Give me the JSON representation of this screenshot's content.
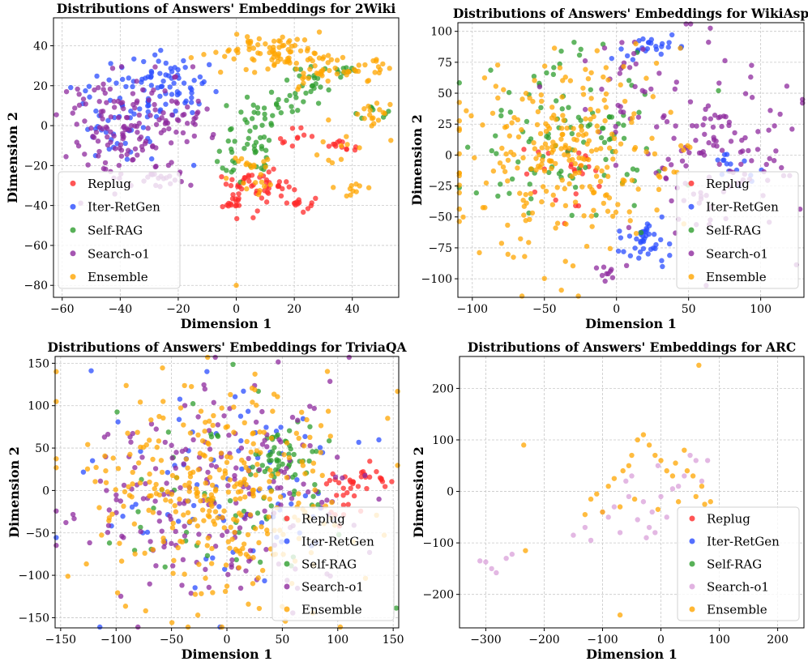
{
  "chart_data": [
    {
      "type": "scatter",
      "title": "Distributions of Answers' Embeddings for 2Wiki",
      "xlabel": "Dimension 1",
      "ylabel": "Dimension 2",
      "xlim": [
        -63,
        56
      ],
      "ylim": [
        -86,
        54
      ],
      "xticks": [
        -60,
        -40,
        -20,
        0,
        20,
        40
      ],
      "yticks": [
        -80,
        -60,
        -40,
        -20,
        0,
        20,
        40
      ],
      "grid": true,
      "legend_position": "lower-left",
      "colors": {
        "Replug": "#ff2a2a",
        "Iter-RetGen": "#2a4cff",
        "Self-RAG": "#2e9e2e",
        "Search-o1": "#8e2a9e",
        "Ensemble": "#ffa500"
      },
      "series": [
        {
          "name": "Replug",
          "clusters": [
            [
              5,
              -28,
              4,
              4,
              30
            ],
            [
              0,
              -38,
              4,
              3,
              20
            ],
            [
              15,
              -31,
              3,
              2,
              12
            ],
            [
              21,
              -39,
              3,
              2,
              14
            ],
            [
              36,
              -9,
              2,
              2,
              12
            ],
            [
              20,
              -6,
              3,
              3,
              10
            ]
          ]
        },
        {
          "name": "Iter-RetGen",
          "clusters": [
            [
              -35,
              10,
              11,
              13,
              80
            ],
            [
              -22,
              20,
              8,
              7,
              40
            ]
          ]
        },
        {
          "name": "Self-RAG",
          "clusters": [
            [
              3,
              -10,
              5,
              9,
              45
            ],
            [
              13,
              8,
              5,
              5,
              20
            ],
            [
              25,
              18,
              5,
              5,
              22
            ],
            [
              35,
              27,
              5,
              3,
              12
            ],
            [
              48,
              5,
              4,
              3,
              8
            ]
          ]
        },
        {
          "name": "Search-o1",
          "clusters": [
            [
              -38,
              0,
              11,
              14,
              150
            ],
            [
              -25,
              -26,
              6,
              3,
              18
            ],
            [
              -15,
              5,
              3,
              6,
              12
            ]
          ]
        },
        {
          "name": "Ensemble",
          "clusters": [
            [
              12,
              38,
              10,
              5,
              70
            ],
            [
              28,
              30,
              7,
              6,
              40
            ],
            [
              48,
              6,
              4,
              3,
              14
            ],
            [
              40,
              -10,
              6,
              8,
              15
            ],
            [
              5,
              -18,
              5,
              4,
              14
            ],
            [
              45,
              28,
              5,
              3,
              18
            ],
            [
              38,
              -32,
              3,
              2,
              8
            ],
            [
              6,
              -30,
              4,
              3,
              8
            ]
          ],
          "points": [
            [
              0,
              -80
            ]
          ]
        }
      ]
    },
    {
      "type": "scatter",
      "title": "Distributions of Answers' Embeddings for WikiAsp",
      "xlabel": "Dimension 1",
      "ylabel": "Dimension 2",
      "xlim": [
        -110,
        130
      ],
      "ylim": [
        -115,
        107
      ],
      "xticks": [
        -100,
        -50,
        0,
        50,
        100
      ],
      "yticks": [
        -100,
        -75,
        -50,
        -25,
        0,
        25,
        50,
        75,
        100
      ],
      "grid": true,
      "legend_position": "lower-right",
      "colors": {
        "Replug": "#ff2a2a",
        "Iter-RetGen": "#2a4cff",
        "Self-RAG": "#2e9e2e",
        "Search-o1": "#8e2a9e",
        "Ensemble": "#ffa500"
      },
      "series": [
        {
          "name": "Replug",
          "clusters": [
            [
              -25,
              -10,
              6,
              4,
              10
            ],
            [
              -40,
              -20,
              15,
              20,
              15
            ]
          ]
        },
        {
          "name": "Iter-RetGen",
          "clusters": [
            [
              18,
              -70,
              9,
              9,
              40
            ],
            [
              20,
              88,
              12,
              5,
              25
            ],
            [
              85,
              -5,
              10,
              10,
              15
            ]
          ]
        },
        {
          "name": "Self-RAG",
          "clusters": [
            [
              -30,
              10,
              35,
              35,
              110
            ]
          ]
        },
        {
          "name": "Search-o1",
          "clusters": [
            [
              65,
              10,
              30,
              35,
              130
            ],
            [
              -5,
              -93,
              5,
              4,
              10
            ],
            [
              0,
              60,
              20,
              20,
              25
            ]
          ]
        },
        {
          "name": "Ensemble",
          "clusters": [
            [
              -35,
              5,
              38,
              40,
              260
            ]
          ]
        }
      ]
    },
    {
      "type": "scatter",
      "title": "Distributions of Answers' Embeddings for TriviaQA",
      "xlabel": "Dimension 1",
      "ylabel": "Dimension 2",
      "xlim": [
        -155,
        155
      ],
      "ylim": [
        -162,
        158
      ],
      "xticks": [
        -150,
        -100,
        -50,
        0,
        50,
        100,
        150
      ],
      "yticks": [
        -150,
        -100,
        -50,
        0,
        50,
        100,
        150
      ],
      "grid": true,
      "legend_position": "lower-right",
      "colors": {
        "Replug": "#ff2a2a",
        "Iter-RetGen": "#2a4cff",
        "Self-RAG": "#2e9e2e",
        "Search-o1": "#8e2a9e",
        "Ensemble": "#ffa500"
      },
      "series": [
        {
          "name": "Replug",
          "clusters": [
            [
              115,
              15,
              15,
              10,
              25
            ],
            [
              142,
              12,
              3,
              3,
              6
            ],
            [
              105,
              -25,
              10,
              10,
              10
            ]
          ]
        },
        {
          "name": "Iter-RetGen",
          "clusters": [
            [
              0,
              0,
              60,
              60,
              90
            ]
          ]
        },
        {
          "name": "Self-RAG",
          "clusters": [
            [
              50,
              40,
              15,
              20,
              45
            ],
            [
              0,
              0,
              55,
              55,
              60
            ]
          ]
        },
        {
          "name": "Search-o1",
          "clusters": [
            [
              0,
              0,
              60,
              60,
              200
            ]
          ]
        },
        {
          "name": "Ensemble",
          "clusters": [
            [
              -10,
              0,
              60,
              62,
              330
            ]
          ]
        }
      ]
    },
    {
      "type": "scatter",
      "title": "Distributions of Answers' Embeddings for ARC",
      "xlabel": "Dimension 1",
      "ylabel": "Dimension 2",
      "xlim": [
        -345,
        245
      ],
      "ylim": [
        -265,
        262
      ],
      "xticks": [
        -300,
        -200,
        -100,
        0,
        100,
        200
      ],
      "yticks": [
        -200,
        -100,
        0,
        100,
        200
      ],
      "grid": true,
      "legend_position": "lower-right",
      "colors": {
        "Replug": "#ff2a2a",
        "Iter-RetGen": "#2a4cff",
        "Self-RAG": "#2e9e2e",
        "Search-o1": "#d9a0d9",
        "Ensemble": "#ffa500"
      },
      "series": [
        {
          "name": "Replug",
          "points": []
        },
        {
          "name": "Iter-RetGen",
          "points": []
        },
        {
          "name": "Self-RAG",
          "points": []
        },
        {
          "name": "Search-o1",
          "points": [
            [
              -310,
              -135
            ],
            [
              -300,
              -137
            ],
            [
              -290,
              -150
            ],
            [
              -282,
              -158
            ],
            [
              -265,
              -130
            ],
            [
              -255,
              -122
            ],
            [
              -150,
              -85
            ],
            [
              -130,
              -70
            ],
            [
              -120,
              -95
            ],
            [
              -90,
              -50
            ],
            [
              -80,
              -30
            ],
            [
              -70,
              -80
            ],
            [
              -60,
              20
            ],
            [
              -55,
              -10
            ],
            [
              -50,
              30
            ],
            [
              -40,
              -55
            ],
            [
              -30,
              -20
            ],
            [
              -20,
              -70
            ],
            [
              -15,
              -40
            ],
            [
              0,
              -10
            ],
            [
              -5,
              50
            ],
            [
              20,
              5
            ],
            [
              30,
              10
            ],
            [
              40,
              30
            ],
            [
              50,
              70
            ],
            [
              60,
              60
            ],
            [
              70,
              20
            ],
            [
              80,
              60
            ],
            [
              -25,
              -90
            ],
            [
              -10,
              -80
            ],
            [
              -100,
              -40
            ],
            [
              10,
              -50
            ]
          ]
        },
        {
          "name": "Ensemble",
          "points": [
            [
              -235,
              90
            ],
            [
              -232,
              -115
            ],
            [
              -120,
              -15
            ],
            [
              -110,
              -5
            ],
            [
              -100,
              -40
            ],
            [
              -90,
              10
            ],
            [
              -80,
              25
            ],
            [
              -70,
              -30
            ],
            [
              -65,
              40
            ],
            [
              -55,
              50
            ],
            [
              -50,
              70
            ],
            [
              -40,
              100
            ],
            [
              -30,
              110
            ],
            [
              -20,
              90
            ],
            [
              -10,
              70
            ],
            [
              0,
              60
            ],
            [
              10,
              40
            ],
            [
              20,
              30
            ],
            [
              25,
              55
            ],
            [
              40,
              80
            ],
            [
              45,
              40
            ],
            [
              55,
              30
            ],
            [
              60,
              -10
            ],
            [
              70,
              10
            ],
            [
              75,
              -25
            ],
            [
              65,
              245
            ],
            [
              -70,
              -240
            ],
            [
              -5,
              -35
            ],
            [
              30,
              -20
            ],
            [
              -45,
              -15
            ],
            [
              85,
              -20
            ],
            [
              -130,
              -45
            ]
          ]
        }
      ]
    }
  ]
}
